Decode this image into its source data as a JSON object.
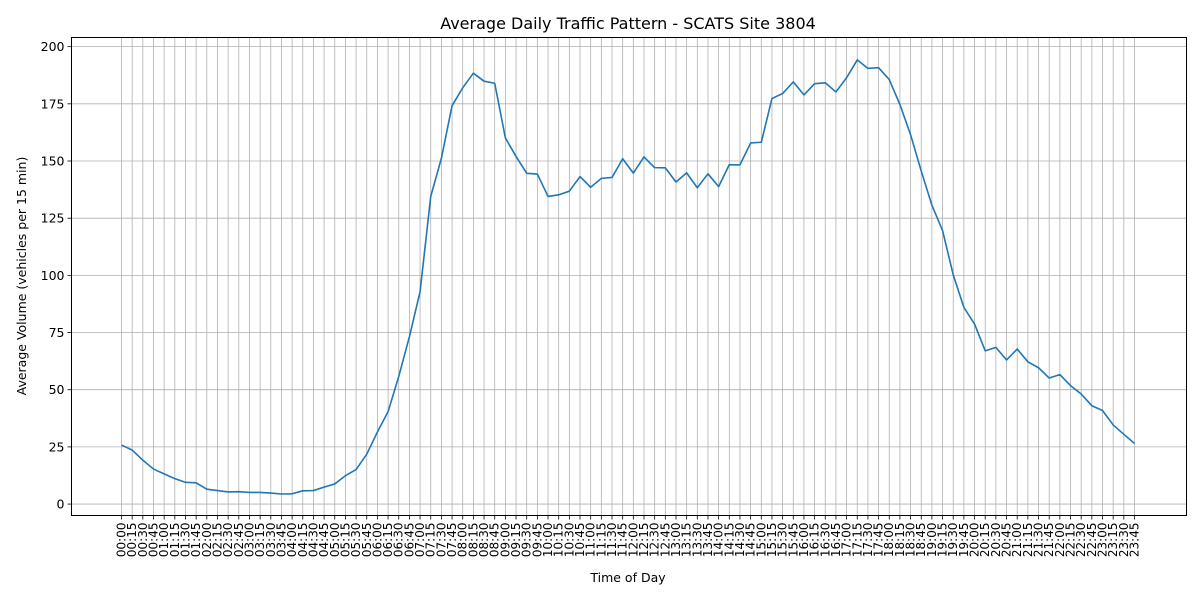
{
  "colors": {
    "series": "#1f77b4"
  },
  "chart_data": {
    "type": "line",
    "title": "Average Daily Traffic Pattern - SCATS Site 3804",
    "xlabel": "Time of Day",
    "ylabel": "Average Volume (vehicles per 15 min)",
    "ylim": [
      -5,
      204
    ],
    "yticks": [
      0,
      25,
      50,
      75,
      100,
      125,
      150,
      175,
      200
    ],
    "grid": true,
    "x": [
      "00:00",
      "00:15",
      "00:30",
      "00:45",
      "01:00",
      "01:15",
      "01:30",
      "01:45",
      "02:00",
      "02:15",
      "02:30",
      "02:45",
      "03:00",
      "03:15",
      "03:30",
      "03:45",
      "04:00",
      "04:15",
      "04:30",
      "04:45",
      "05:00",
      "05:15",
      "05:30",
      "05:45",
      "06:00",
      "06:15",
      "06:30",
      "06:45",
      "07:00",
      "07:15",
      "07:30",
      "07:45",
      "08:00",
      "08:15",
      "08:30",
      "08:45",
      "09:00",
      "09:15",
      "09:30",
      "09:45",
      "10:00",
      "10:15",
      "10:30",
      "10:45",
      "11:00",
      "11:15",
      "11:30",
      "11:45",
      "12:00",
      "12:15",
      "12:30",
      "12:45",
      "13:00",
      "13:15",
      "13:30",
      "13:45",
      "14:00",
      "14:15",
      "14:30",
      "14:45",
      "15:00",
      "15:15",
      "15:30",
      "15:45",
      "16:00",
      "16:15",
      "16:30",
      "16:45",
      "17:00",
      "17:15",
      "17:30",
      "17:45",
      "18:00",
      "18:15",
      "18:30",
      "18:45",
      "19:00",
      "19:15",
      "19:30",
      "19:45",
      "20:00",
      "20:15",
      "20:30",
      "20:45",
      "21:00",
      "21:15",
      "21:30",
      "21:45",
      "22:00",
      "22:15",
      "22:30",
      "22:45",
      "23:00",
      "23:15",
      "23:30",
      "23:45"
    ],
    "series": [
      {
        "values": [
          25.8,
          23.6,
          19.2,
          15.3,
          13.2,
          11.1,
          9.5,
          9.3,
          6.5,
          5.9,
          5.3,
          5.4,
          5.1,
          5.1,
          4.8,
          4.4,
          4.5,
          5.8,
          5.9,
          7.4,
          8.8,
          12.4,
          15.1,
          21.8,
          31.5,
          40.4,
          55.8,
          73.2,
          92.8,
          134.5,
          151.2,
          174.2,
          182.0,
          188.4,
          184.9,
          184.0,
          160.1,
          152.0,
          144.6,
          144.3,
          134.5,
          135.2,
          136.8,
          143.2,
          138.5,
          142.4,
          142.8,
          151.0,
          144.7,
          151.8,
          147.1,
          147.0,
          140.8,
          144.8,
          138.3,
          144.4,
          138.8,
          148.4,
          148.3,
          157.9,
          158.2,
          177.3,
          179.5,
          184.6,
          178.9,
          183.8,
          184.2,
          180.2,
          186.4,
          194.2,
          190.5,
          190.8,
          185.6,
          174.7,
          161.5,
          145.6,
          130.7,
          119.6,
          100.2,
          86.0,
          78.7,
          67.0,
          68.5,
          63.0,
          67.8,
          62.2,
          59.6,
          55.1,
          56.6,
          51.8,
          48.1,
          43.0,
          40.9,
          34.6,
          30.5,
          26.5
        ]
      }
    ]
  }
}
